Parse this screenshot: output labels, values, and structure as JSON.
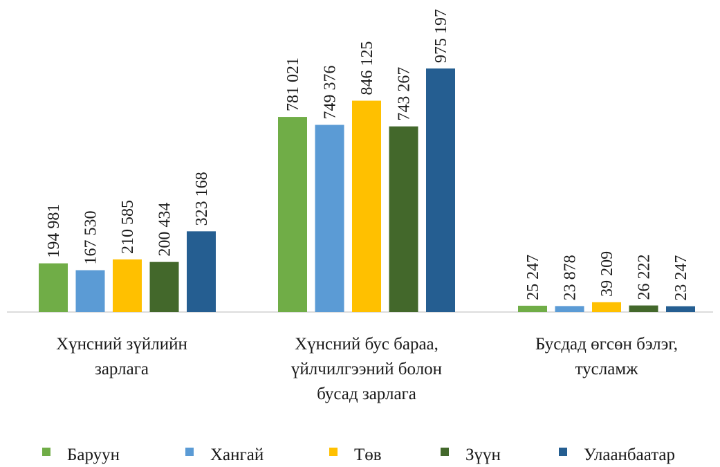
{
  "chart_data": {
    "type": "bar",
    "categories": [
      [
        "Хүнсний зүйлийн",
        "зарлага"
      ],
      [
        "Хүнсний бус бараа,",
        "үйлчилгээний болон",
        "бусад зарлага"
      ],
      [
        "Бусдад өгсөн бэлэг,",
        "тусламж"
      ]
    ],
    "series": [
      {
        "name": "Баруун",
        "color": "#70ad47",
        "values": [
          194981,
          781021,
          25247
        ],
        "labels": [
          "194 981",
          "781 021",
          "25 247"
        ]
      },
      {
        "name": "Хангай",
        "color": "#5b9bd5",
        "values": [
          167530,
          749376,
          23878
        ],
        "labels": [
          "167 530",
          "749 376",
          "23 878"
        ]
      },
      {
        "name": "Төв",
        "color": "#ffc000",
        "values": [
          210585,
          846125,
          39209
        ],
        "labels": [
          "210 585",
          "846 125",
          "39 209"
        ]
      },
      {
        "name": "Зүүн",
        "color": "#43682b",
        "values": [
          200434,
          743267,
          26222
        ],
        "labels": [
          "200 434",
          "743 267",
          "26 222"
        ]
      },
      {
        "name": "Улаанбаатар",
        "color": "#255e91",
        "values": [
          323168,
          975197,
          23247
        ],
        "labels": [
          "323 168",
          "975 197",
          "23 247"
        ]
      }
    ],
    "ylim": [
      0,
      1000000
    ],
    "grid": false,
    "legend": "bottom",
    "value_label_orientation": "vertical"
  }
}
